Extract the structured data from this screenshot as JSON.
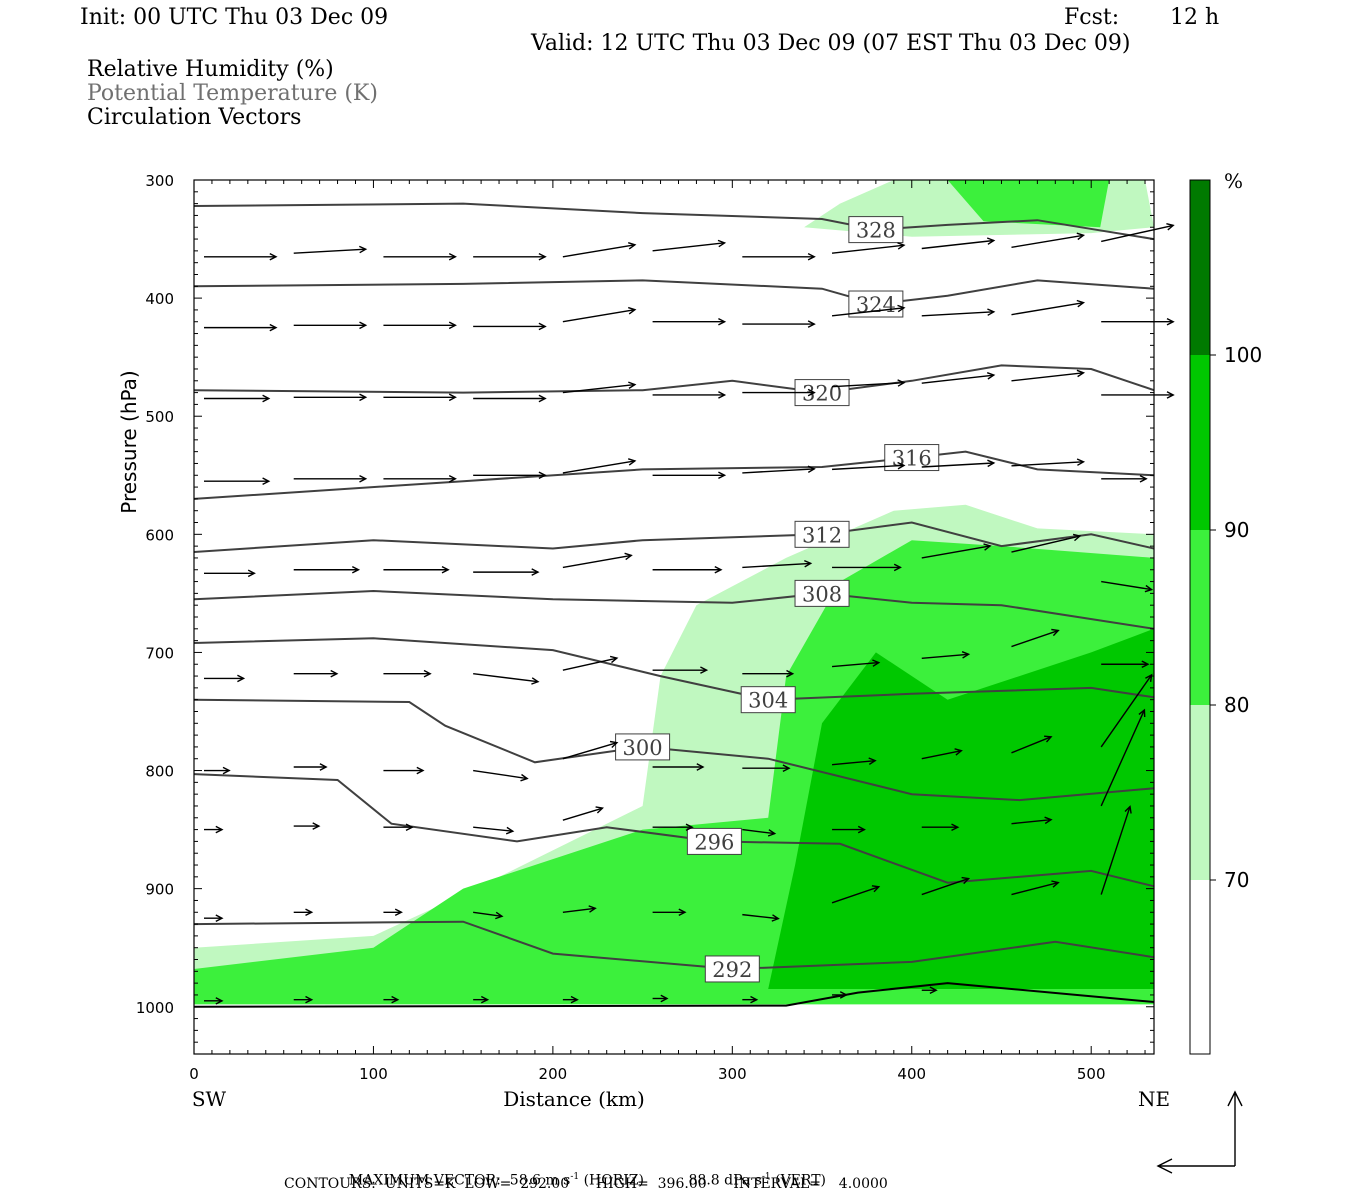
{
  "header": {
    "init": "Init: 00 UTC Thu 03 Dec 09",
    "fcst_label": "Fcst:",
    "fcst_value": "12 h",
    "valid": "Valid: 12 UTC Thu 03 Dec 09 (07 EST Thu 03 Dec 09)"
  },
  "legend_text": {
    "rh": "Relative Humidity (%)",
    "theta": "Potential Temperature (K)",
    "vectors": "Circulation Vectors"
  },
  "chart_data": {
    "type": "heatmap",
    "title": "",
    "xlabel": "Distance (km)",
    "ylabel": "Pressure (hPa)",
    "xlim": [
      0,
      535
    ],
    "ylim": [
      1040,
      300
    ],
    "x_ticks": [
      0,
      100,
      200,
      300,
      400,
      500
    ],
    "y_ticks": [
      300,
      400,
      500,
      600,
      700,
      800,
      900,
      1000
    ],
    "x_end_labels": {
      "left": "SW",
      "right": "NE"
    },
    "colorbar": {
      "unit": "%",
      "levels": [
        70,
        80,
        90,
        100
      ],
      "colors": [
        "#ffffff",
        "#c0f8c0",
        "#3cf03c",
        "#00c800",
        "#007a00"
      ]
    },
    "theta_contours": [
      {
        "value": 328,
        "points": [
          [
            0,
            322
          ],
          [
            150,
            320
          ],
          [
            250,
            328
          ],
          [
            350,
            333
          ],
          [
            380,
            342
          ],
          [
            420,
            338
          ],
          [
            470,
            334
          ],
          [
            535,
            350
          ]
        ]
      },
      {
        "value": 324,
        "points": [
          [
            0,
            390
          ],
          [
            150,
            388
          ],
          [
            250,
            385
          ],
          [
            350,
            392
          ],
          [
            380,
            405
          ],
          [
            420,
            398
          ],
          [
            470,
            385
          ],
          [
            535,
            392
          ]
        ]
      },
      {
        "value": 320,
        "points": [
          [
            0,
            478
          ],
          [
            150,
            480
          ],
          [
            250,
            478
          ],
          [
            300,
            470
          ],
          [
            350,
            480
          ],
          [
            400,
            470
          ],
          [
            450,
            457
          ],
          [
            500,
            460
          ],
          [
            535,
            478
          ]
        ]
      },
      {
        "value": 316,
        "points": [
          [
            0,
            570
          ],
          [
            150,
            555
          ],
          [
            250,
            545
          ],
          [
            350,
            543
          ],
          [
            400,
            535
          ],
          [
            430,
            530
          ],
          [
            470,
            545
          ],
          [
            535,
            550
          ]
        ]
      },
      {
        "value": 312,
        "points": [
          [
            0,
            615
          ],
          [
            100,
            605
          ],
          [
            200,
            612
          ],
          [
            250,
            605
          ],
          [
            350,
            600
          ],
          [
            400,
            590
          ],
          [
            450,
            610
          ],
          [
            500,
            600
          ],
          [
            535,
            612
          ]
        ]
      },
      {
        "value": 308,
        "points": [
          [
            0,
            655
          ],
          [
            100,
            648
          ],
          [
            200,
            655
          ],
          [
            300,
            658
          ],
          [
            350,
            650
          ],
          [
            400,
            658
          ],
          [
            450,
            660
          ],
          [
            535,
            680
          ]
        ]
      },
      {
        "value": 304,
        "points": [
          [
            0,
            692
          ],
          [
            100,
            688
          ],
          [
            200,
            698
          ],
          [
            260,
            720
          ],
          [
            320,
            740
          ],
          [
            400,
            735
          ],
          [
            500,
            730
          ],
          [
            535,
            738
          ]
        ]
      },
      {
        "value": 300,
        "points": [
          [
            0,
            740
          ],
          [
            120,
            742
          ],
          [
            140,
            762
          ],
          [
            190,
            793
          ],
          [
            250,
            780
          ],
          [
            320,
            790
          ],
          [
            400,
            820
          ],
          [
            460,
            825
          ],
          [
            535,
            815
          ]
        ]
      },
      {
        "value": 296,
        "points": [
          [
            0,
            803
          ],
          [
            80,
            808
          ],
          [
            110,
            845
          ],
          [
            180,
            860
          ],
          [
            230,
            848
          ],
          [
            290,
            860
          ],
          [
            360,
            862
          ],
          [
            420,
            895
          ],
          [
            500,
            885
          ],
          [
            535,
            898
          ]
        ]
      },
      {
        "value": 292,
        "points": [
          [
            0,
            930
          ],
          [
            150,
            928
          ],
          [
            200,
            955
          ],
          [
            300,
            968
          ],
          [
            400,
            962
          ],
          [
            480,
            945
          ],
          [
            535,
            958
          ]
        ]
      }
    ],
    "rh_regions": [
      {
        "level": 70,
        "points": [
          [
            0,
            950
          ],
          [
            100,
            940
          ],
          [
            150,
            905
          ],
          [
            250,
            830
          ],
          [
            260,
            720
          ],
          [
            280,
            660
          ],
          [
            330,
            620
          ],
          [
            390,
            580
          ],
          [
            430,
            575
          ],
          [
            470,
            595
          ],
          [
            535,
            600
          ],
          [
            535,
            995
          ],
          [
            0,
            995
          ]
        ]
      },
      {
        "level": 80,
        "points": [
          [
            0,
            968
          ],
          [
            100,
            950
          ],
          [
            150,
            900
          ],
          [
            250,
            850
          ],
          [
            320,
            840
          ],
          [
            330,
            720
          ],
          [
            360,
            640
          ],
          [
            400,
            605
          ],
          [
            450,
            610
          ],
          [
            535,
            620
          ],
          [
            535,
            998
          ],
          [
            0,
            998
          ]
        ]
      },
      {
        "level": 90,
        "points": [
          [
            320,
            985
          ],
          [
            335,
            880
          ],
          [
            350,
            760
          ],
          [
            380,
            700
          ],
          [
            420,
            740
          ],
          [
            460,
            720
          ],
          [
            500,
            700
          ],
          [
            535,
            680
          ],
          [
            535,
            985
          ]
        ]
      },
      {
        "level": 70,
        "points": [
          [
            340,
            340
          ],
          [
            360,
            320
          ],
          [
            390,
            300
          ],
          [
            530,
            300
          ],
          [
            535,
            340
          ],
          [
            500,
            345
          ],
          [
            400,
            348
          ]
        ]
      },
      {
        "level": 80,
        "points": [
          [
            420,
            300
          ],
          [
            510,
            300
          ],
          [
            505,
            340
          ],
          [
            440,
            335
          ]
        ]
      }
    ],
    "vectors": [
      {
        "x": 0,
        "p": 365,
        "u": 40,
        "w": 0
      },
      {
        "x": 50,
        "p": 362,
        "u": 40,
        "w": 1
      },
      {
        "x": 100,
        "p": 365,
        "u": 40,
        "w": 0
      },
      {
        "x": 150,
        "p": 365,
        "u": 40,
        "w": 0
      },
      {
        "x": 200,
        "p": 365,
        "u": 40,
        "w": 3
      },
      {
        "x": 250,
        "p": 360,
        "u": 40,
        "w": 2
      },
      {
        "x": 300,
        "p": 365,
        "u": 40,
        "w": 0
      },
      {
        "x": 350,
        "p": 362,
        "u": 40,
        "w": 2
      },
      {
        "x": 400,
        "p": 358,
        "u": 40,
        "w": 2
      },
      {
        "x": 450,
        "p": 357,
        "u": 40,
        "w": 3
      },
      {
        "x": 500,
        "p": 352,
        "u": 40,
        "w": 4
      },
      {
        "x": 0,
        "p": 425,
        "u": 40,
        "w": 0
      },
      {
        "x": 50,
        "p": 423,
        "u": 40,
        "w": 0
      },
      {
        "x": 100,
        "p": 423,
        "u": 40,
        "w": 0
      },
      {
        "x": 150,
        "p": 424,
        "u": 40,
        "w": 0
      },
      {
        "x": 200,
        "p": 420,
        "u": 40,
        "w": 3
      },
      {
        "x": 250,
        "p": 420,
        "u": 40,
        "w": 0
      },
      {
        "x": 300,
        "p": 422,
        "u": 40,
        "w": 0
      },
      {
        "x": 350,
        "p": 415,
        "u": 40,
        "w": 2
      },
      {
        "x": 400,
        "p": 415,
        "u": 40,
        "w": 1
      },
      {
        "x": 450,
        "p": 414,
        "u": 40,
        "w": 3
      },
      {
        "x": 500,
        "p": 420,
        "u": 40,
        "w": 0
      },
      {
        "x": 0,
        "p": 485,
        "u": 36,
        "w": 0
      },
      {
        "x": 50,
        "p": 484,
        "u": 40,
        "w": 0
      },
      {
        "x": 100,
        "p": 484,
        "u": 40,
        "w": 0
      },
      {
        "x": 150,
        "p": 485,
        "u": 40,
        "w": 0
      },
      {
        "x": 200,
        "p": 480,
        "u": 40,
        "w": 2
      },
      {
        "x": 250,
        "p": 482,
        "u": 40,
        "w": 0
      },
      {
        "x": 300,
        "p": 480,
        "u": 40,
        "w": 0
      },
      {
        "x": 350,
        "p": 475,
        "u": 40,
        "w": 1
      },
      {
        "x": 400,
        "p": 472,
        "u": 40,
        "w": 2
      },
      {
        "x": 450,
        "p": 470,
        "u": 40,
        "w": 2
      },
      {
        "x": 500,
        "p": 482,
        "u": 40,
        "w": 0
      },
      {
        "x": 0,
        "p": 555,
        "u": 36,
        "w": 0
      },
      {
        "x": 50,
        "p": 553,
        "u": 40,
        "w": 0
      },
      {
        "x": 100,
        "p": 553,
        "u": 40,
        "w": 0
      },
      {
        "x": 150,
        "p": 550,
        "u": 40,
        "w": 0
      },
      {
        "x": 200,
        "p": 548,
        "u": 40,
        "w": 3
      },
      {
        "x": 250,
        "p": 550,
        "u": 40,
        "w": 0
      },
      {
        "x": 300,
        "p": 548,
        "u": 40,
        "w": 1
      },
      {
        "x": 350,
        "p": 545,
        "u": 40,
        "w": 1
      },
      {
        "x": 400,
        "p": 543,
        "u": 40,
        "w": 1
      },
      {
        "x": 450,
        "p": 542,
        "u": 40,
        "w": 1
      },
      {
        "x": 500,
        "p": 553,
        "u": 25,
        "w": 0
      },
      {
        "x": 0,
        "p": 633,
        "u": 28,
        "w": 0
      },
      {
        "x": 50,
        "p": 630,
        "u": 36,
        "w": 0
      },
      {
        "x": 100,
        "p": 630,
        "u": 36,
        "w": 0
      },
      {
        "x": 150,
        "p": 632,
        "u": 36,
        "w": 0
      },
      {
        "x": 200,
        "p": 628,
        "u": 38,
        "w": 3
      },
      {
        "x": 250,
        "p": 630,
        "u": 38,
        "w": 0
      },
      {
        "x": 300,
        "p": 628,
        "u": 38,
        "w": 1
      },
      {
        "x": 350,
        "p": 628,
        "u": 38,
        "w": 0
      },
      {
        "x": 400,
        "p": 620,
        "u": 38,
        "w": 3
      },
      {
        "x": 450,
        "p": 615,
        "u": 38,
        "w": 4
      },
      {
        "x": 500,
        "p": 640,
        "u": 28,
        "w": -2
      },
      {
        "x": 0,
        "p": 722,
        "u": 22,
        "w": 0
      },
      {
        "x": 50,
        "p": 718,
        "u": 24,
        "w": 0
      },
      {
        "x": 100,
        "p": 718,
        "u": 26,
        "w": 0
      },
      {
        "x": 150,
        "p": 718,
        "u": 36,
        "w": -2
      },
      {
        "x": 200,
        "p": 715,
        "u": 30,
        "w": 3
      },
      {
        "x": 250,
        "p": 715,
        "u": 30,
        "w": 0
      },
      {
        "x": 300,
        "p": 718,
        "u": 28,
        "w": 0
      },
      {
        "x": 350,
        "p": 712,
        "u": 26,
        "w": 1
      },
      {
        "x": 400,
        "p": 705,
        "u": 26,
        "w": 1
      },
      {
        "x": 450,
        "p": 695,
        "u": 26,
        "w": 4
      },
      {
        "x": 500,
        "p": 710,
        "u": 26,
        "w": 0
      },
      {
        "x": 0,
        "p": 800,
        "u": 14,
        "w": 0
      },
      {
        "x": 50,
        "p": 797,
        "u": 18,
        "w": 0
      },
      {
        "x": 100,
        "p": 800,
        "u": 22,
        "w": 0
      },
      {
        "x": 150,
        "p": 800,
        "u": 30,
        "w": -2
      },
      {
        "x": 200,
        "p": 790,
        "u": 30,
        "w": 4
      },
      {
        "x": 250,
        "p": 797,
        "u": 28,
        "w": 0
      },
      {
        "x": 300,
        "p": 798,
        "u": 26,
        "w": 0
      },
      {
        "x": 350,
        "p": 795,
        "u": 24,
        "w": 1
      },
      {
        "x": 400,
        "p": 790,
        "u": 22,
        "w": 2
      },
      {
        "x": 450,
        "p": 785,
        "u": 22,
        "w": 4
      },
      {
        "x": 500,
        "p": 780,
        "u": 28,
        "w": 18
      },
      {
        "x": 0,
        "p": 850,
        "u": 10,
        "w": 0
      },
      {
        "x": 50,
        "p": 847,
        "u": 14,
        "w": 0
      },
      {
        "x": 100,
        "p": 848,
        "u": 16,
        "w": 0
      },
      {
        "x": 150,
        "p": 848,
        "u": 22,
        "w": -1
      },
      {
        "x": 200,
        "p": 842,
        "u": 22,
        "w": 3
      },
      {
        "x": 250,
        "p": 848,
        "u": 22,
        "w": 0
      },
      {
        "x": 300,
        "p": 850,
        "u": 18,
        "w": -1
      },
      {
        "x": 350,
        "p": 850,
        "u": 18,
        "w": 0
      },
      {
        "x": 400,
        "p": 848,
        "u": 20,
        "w": 0
      },
      {
        "x": 450,
        "p": 845,
        "u": 22,
        "w": 1
      },
      {
        "x": 500,
        "p": 830,
        "u": 24,
        "w": 24
      },
      {
        "x": 0,
        "p": 925,
        "u": 10,
        "w": 0
      },
      {
        "x": 50,
        "p": 920,
        "u": 10,
        "w": 0
      },
      {
        "x": 100,
        "p": 920,
        "u": 10,
        "w": 0
      },
      {
        "x": 150,
        "p": 920,
        "u": 16,
        "w": -1
      },
      {
        "x": 200,
        "p": 920,
        "u": 18,
        "w": 1
      },
      {
        "x": 250,
        "p": 920,
        "u": 18,
        "w": 0
      },
      {
        "x": 300,
        "p": 922,
        "u": 20,
        "w": -1
      },
      {
        "x": 350,
        "p": 912,
        "u": 26,
        "w": 4
      },
      {
        "x": 400,
        "p": 905,
        "u": 26,
        "w": 4
      },
      {
        "x": 450,
        "p": 905,
        "u": 26,
        "w": 3
      },
      {
        "x": 500,
        "p": 905,
        "u": 16,
        "w": 22
      },
      {
        "x": 0,
        "p": 995,
        "u": 10,
        "w": 0
      },
      {
        "x": 50,
        "p": 994,
        "u": 10,
        "w": 0
      },
      {
        "x": 100,
        "p": 994,
        "u": 8,
        "w": 0
      },
      {
        "x": 150,
        "p": 994,
        "u": 8,
        "w": 0
      },
      {
        "x": 200,
        "p": 994,
        "u": 8,
        "w": 0
      },
      {
        "x": 250,
        "p": 993,
        "u": 8,
        "w": 0
      },
      {
        "x": 300,
        "p": 994,
        "u": 8,
        "w": 0
      },
      {
        "x": 350,
        "p": 990,
        "u": 8,
        "w": 0
      },
      {
        "x": 400,
        "p": 986,
        "u": 8,
        "w": 0
      }
    ]
  },
  "footer": {
    "max_vector_label": "MAXIMUM VECTOR:",
    "horiz_value": "58.6 m s",
    "horiz_unit": "(HORIZ)",
    "vert_value": "88.8 dPa s",
    "vert_unit": "(VERT)",
    "exponent": "-1",
    "contours": "CONTOURS:  UNITS=K  LOW=  292.00      HIGH=  396.00      INTERVAL=    4.0000"
  }
}
